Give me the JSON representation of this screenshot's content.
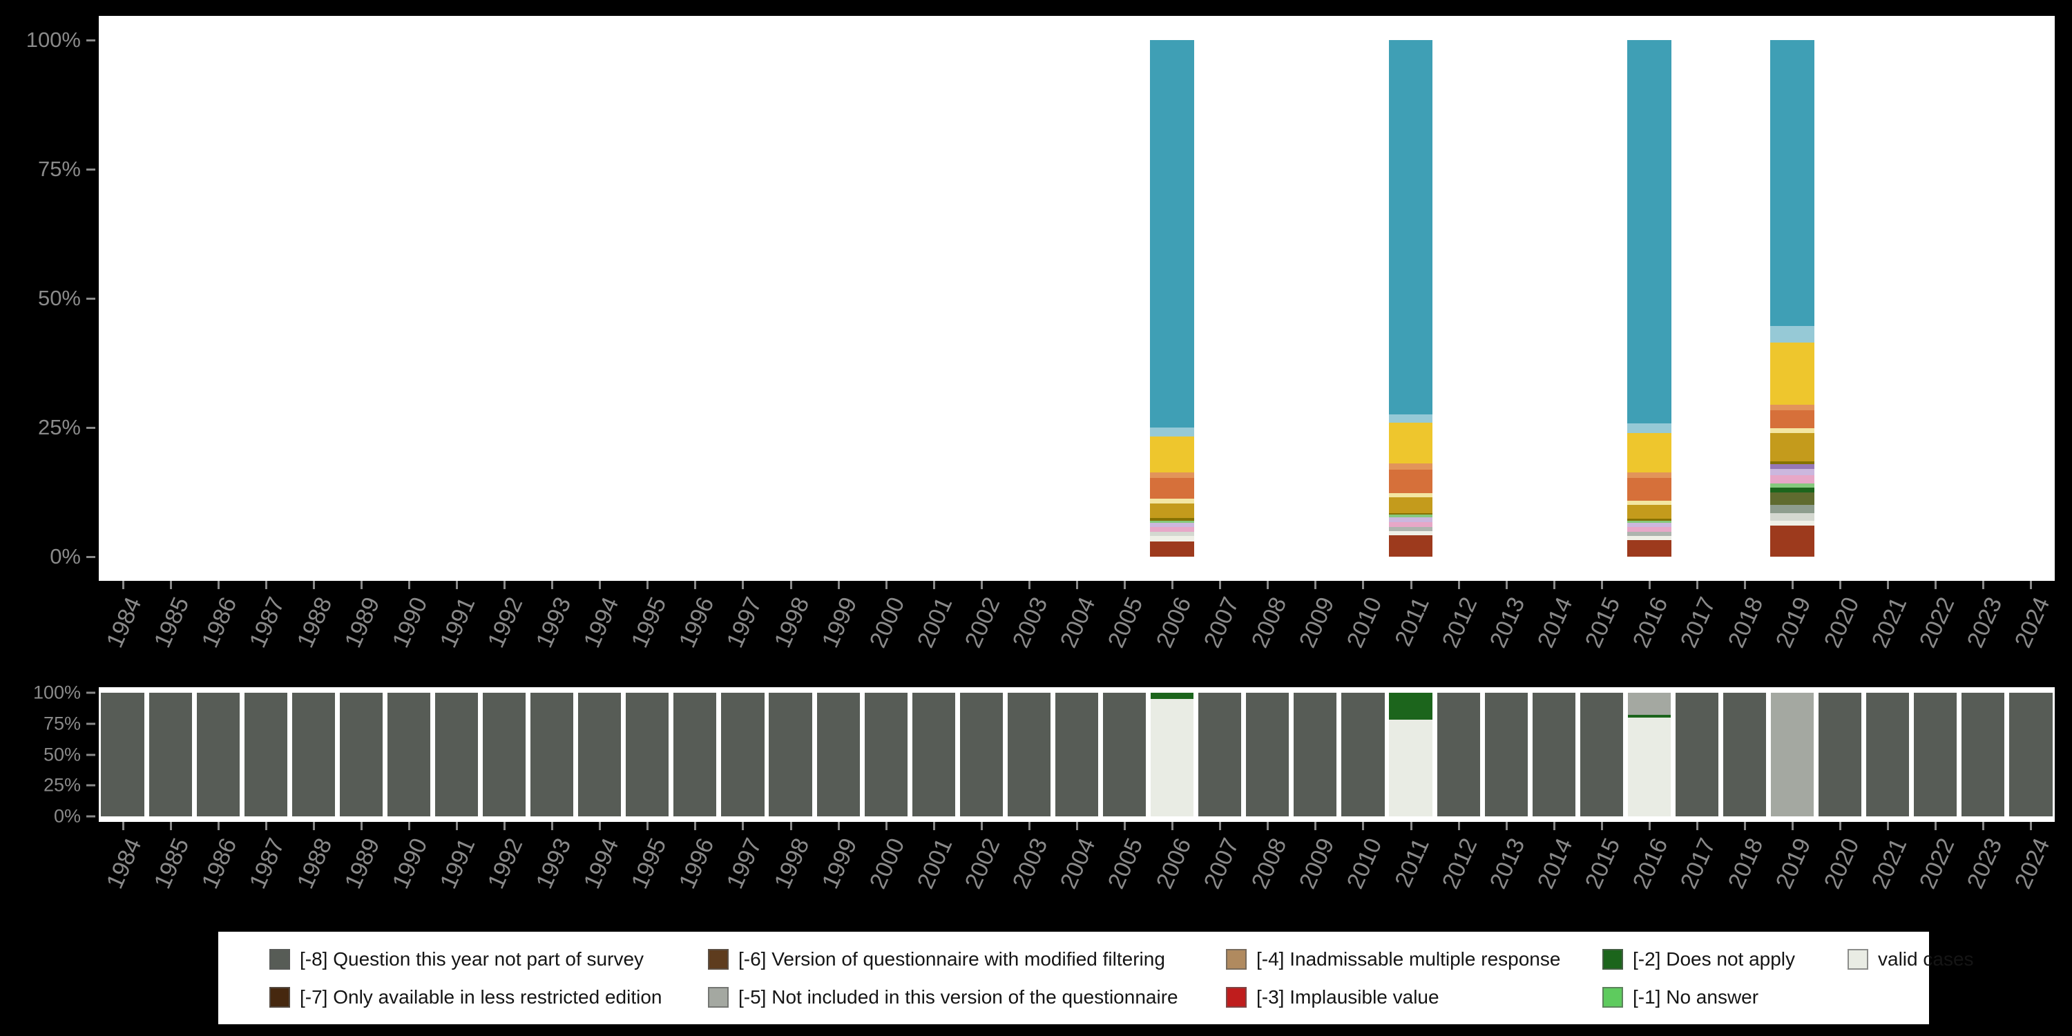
{
  "page": {
    "background": "#000000",
    "panel": "#ffffff",
    "axis_text_color": "#8a8a8a"
  },
  "colors": {
    "teal": "#3f9fb5",
    "lightblue": "#96c9d6",
    "yellow": "#eec62d",
    "salmon": "#e2945a",
    "orange": "#d6703a",
    "paleyellow": "#f3e6a2",
    "darkgold": "#c49b1c",
    "olive": "#857203",
    "lightgreen": "#86c97e",
    "darkgreen": "#1c651c",
    "lavender": "#cbb7de",
    "purple": "#9678b6",
    "pink": "#e7a7c7",
    "gray": "#aeb4ae",
    "lightgray": "#d4d8d0",
    "ivory": "#efefe6",
    "graygreen": "#8e9d8e",
    "olivegreen": "#5f6b2f",
    "darkred": "#9d3a1d",
    "na8": "#575c56",
    "na7": "#46280f",
    "na6": "#5e3c1e",
    "na5": "#a4a8a1",
    "na4": "#b08a5f",
    "na3": "#bf1d1d",
    "na2": "#1c651c",
    "na1": "#5ecb5e",
    "valid": "#e9ece4"
  },
  "chart_data": [
    {
      "id": "category-distribution",
      "type": "bar",
      "stacked": true,
      "unit": "percent",
      "ylim": [
        0,
        100
      ],
      "yticks": [
        "100%",
        "75%",
        "50%",
        "25%",
        "0%"
      ],
      "grid": false,
      "categories": [
        "1984",
        "1985",
        "1986",
        "1987",
        "1988",
        "1989",
        "1990",
        "1991",
        "1992",
        "1993",
        "1994",
        "1995",
        "1996",
        "1997",
        "1998",
        "1999",
        "2000",
        "2001",
        "2002",
        "2003",
        "2004",
        "2005",
        "2006",
        "2007",
        "2008",
        "2009",
        "2010",
        "2011",
        "2012",
        "2013",
        "2014",
        "2015",
        "2016",
        "2017",
        "2018",
        "2019",
        "2020",
        "2021",
        "2022",
        "2023",
        "2024"
      ],
      "segment_order": "bottom_to_top",
      "bars": {
        "2006": [
          [
            "darkred",
            3
          ],
          [
            "ivory",
            1
          ],
          [
            "lightgray",
            0.8
          ],
          [
            "pink",
            0.9
          ],
          [
            "lavender",
            0.8
          ],
          [
            "lightgreen",
            0.5
          ],
          [
            "olive",
            0.5
          ],
          [
            "darkgold",
            2.8
          ],
          [
            "paleyellow",
            1
          ],
          [
            "orange",
            4
          ],
          [
            "salmon",
            1
          ],
          [
            "yellow",
            7
          ],
          [
            "lightblue",
            1.7
          ],
          [
            "teal",
            75
          ]
        ],
        "2011": [
          [
            "darkred",
            4.2
          ],
          [
            "ivory",
            0.8
          ],
          [
            "gray",
            0.8
          ],
          [
            "pink",
            0.9
          ],
          [
            "lavender",
            0.9
          ],
          [
            "lightgreen",
            0.5
          ],
          [
            "olive",
            0.4
          ],
          [
            "darkgold",
            3
          ],
          [
            "paleyellow",
            0.8
          ],
          [
            "orange",
            4.6
          ],
          [
            "salmon",
            1.1
          ],
          [
            "yellow",
            8
          ],
          [
            "lightblue",
            1.6
          ],
          [
            "teal",
            72.4
          ]
        ],
        "2016": [
          [
            "darkred",
            3.2
          ],
          [
            "ivory",
            0.8
          ],
          [
            "gray",
            0.8
          ],
          [
            "pink",
            0.9
          ],
          [
            "lavender",
            0.8
          ],
          [
            "lightgreen",
            0.5
          ],
          [
            "olive",
            0.4
          ],
          [
            "darkgold",
            2.6
          ],
          [
            "paleyellow",
            0.9
          ],
          [
            "orange",
            4.4
          ],
          [
            "salmon",
            1
          ],
          [
            "yellow",
            7.6
          ],
          [
            "lightblue",
            1.9
          ],
          [
            "teal",
            74.2
          ]
        ],
        "2019": [
          [
            "darkred",
            6
          ],
          [
            "ivory",
            1
          ],
          [
            "lightgray",
            1.4
          ],
          [
            "graygreen",
            1.6
          ],
          [
            "olivegreen",
            2.4
          ],
          [
            "darkgreen",
            1
          ],
          [
            "lightgreen",
            0.8
          ],
          [
            "pink",
            1.6
          ],
          [
            "lavender",
            1.2
          ],
          [
            "purple",
            0.9
          ],
          [
            "olive",
            0.5
          ],
          [
            "darkgold",
            5.5
          ],
          [
            "paleyellow",
            1
          ],
          [
            "orange",
            3.4
          ],
          [
            "salmon",
            1.2
          ],
          [
            "yellow",
            12
          ],
          [
            "lightblue",
            3.2
          ],
          [
            "teal",
            55.3
          ]
        ]
      }
    },
    {
      "id": "missing-values",
      "type": "bar",
      "stacked": true,
      "unit": "percent",
      "ylim": [
        0,
        100
      ],
      "yticks": [
        "100%",
        "75%",
        "50%",
        "25%",
        "0%"
      ],
      "grid": false,
      "categories": [
        "1984",
        "1985",
        "1986",
        "1987",
        "1988",
        "1989",
        "1990",
        "1991",
        "1992",
        "1993",
        "1994",
        "1995",
        "1996",
        "1997",
        "1998",
        "1999",
        "2000",
        "2001",
        "2002",
        "2003",
        "2004",
        "2005",
        "2006",
        "2007",
        "2008",
        "2009",
        "2010",
        "2011",
        "2012",
        "2013",
        "2014",
        "2015",
        "2016",
        "2017",
        "2018",
        "2019",
        "2020",
        "2021",
        "2022",
        "2023",
        "2024"
      ],
      "segment_order": "bottom_to_top",
      "default_bar": [
        [
          "na8",
          100
        ]
      ],
      "bars": {
        "2006": [
          [
            "valid",
            95
          ],
          [
            "na2",
            5
          ]
        ],
        "2011": [
          [
            "valid",
            78
          ],
          [
            "na2",
            22
          ]
        ],
        "2016": [
          [
            "valid",
            80
          ],
          [
            "na2",
            2
          ],
          [
            "na5",
            18
          ]
        ],
        "2019": [
          [
            "na5",
            100
          ]
        ]
      }
    }
  ],
  "legend": {
    "rows": [
      [
        {
          "label": "[-8] Question this year not part of survey",
          "color": "#575c56"
        },
        {
          "label": "[-6] Version of questionnaire with modified filtering",
          "color": "#5e3c1e"
        },
        {
          "label": "[-4] Inadmissable multiple response",
          "color": "#b08a5f"
        },
        {
          "label": "[-2] Does not apply",
          "color": "#1c651c"
        },
        {
          "label": "valid cases",
          "color": "#e9ece4"
        }
      ],
      [
        {
          "label": "[-7] Only available in less restricted edition",
          "color": "#46280f"
        },
        {
          "label": "[-5] Not included in this version of the questionnaire",
          "color": "#a4a8a1"
        },
        {
          "label": "[-3] Implausible value",
          "color": "#bf1d1d"
        },
        {
          "label": "[-1] No answer",
          "color": "#5ecb5e"
        }
      ]
    ]
  }
}
